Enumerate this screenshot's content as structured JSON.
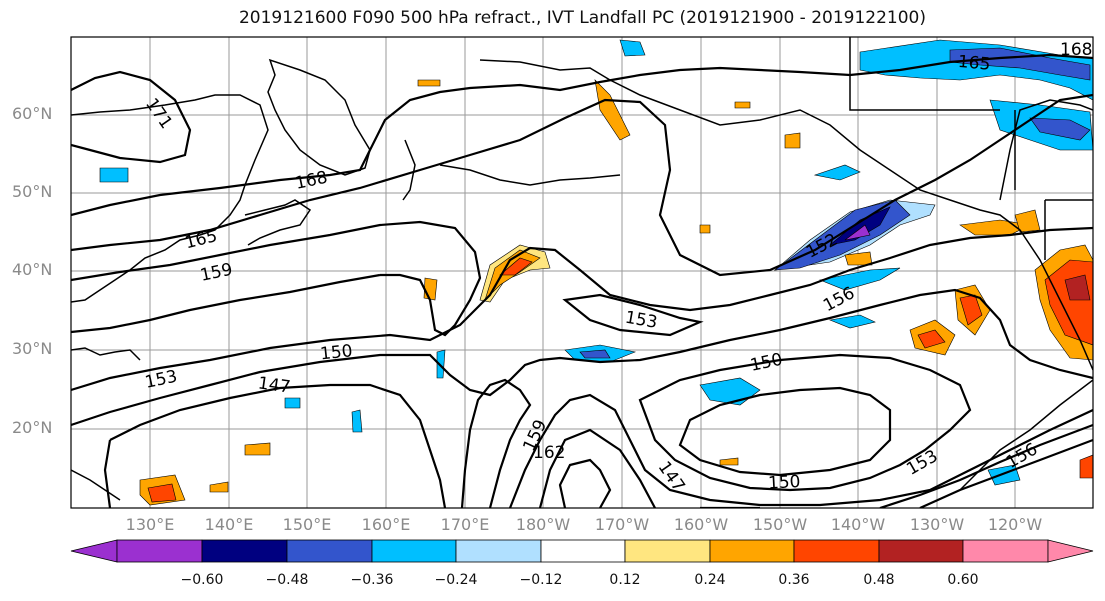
{
  "title": "2019121600 F090 500 hPa refract., IVT Landfall PC (2019121900 - 2019122100)",
  "lat_labels": [
    "60°N",
    "50°N",
    "40°N",
    "30°N",
    "20°N"
  ],
  "lon_labels": [
    "130°E",
    "140°E",
    "150°E",
    "160°E",
    "170°E",
    "180°W",
    "170°W",
    "160°W",
    "150°W",
    "140°W",
    "130°W",
    "120°W"
  ],
  "contour_labels": [
    "171",
    "168",
    "165",
    "159",
    "153",
    "150",
    "147",
    "159",
    "162",
    "150",
    "150",
    "153",
    "156",
    "147",
    "153",
    "156",
    "152",
    "165",
    "168"
  ],
  "colorbar": {
    "ticks": [
      "−0.60",
      "−0.48",
      "−0.36",
      "−0.24",
      "−0.12",
      "0.12",
      "0.24",
      "0.36",
      "0.48",
      "0.60"
    ],
    "colors": [
      "#9b30d0",
      "#000080",
      "#3355cc",
      "#00bfff",
      "#b0e0ff",
      "#ffffff",
      "#ffe680",
      "#ffa500",
      "#ff4500",
      "#b22222",
      "#ff88aa"
    ]
  },
  "colors": {
    "orange": "#f5a300",
    "orange_red": "#ff4500",
    "dark_red": "#b22222",
    "light_yellow": "#ffe680",
    "sky_blue": "#00bfff",
    "light_blue": "#b0e0ff",
    "blue": "#3355cc",
    "navy": "#000080",
    "purple": "#9b30d0"
  }
}
